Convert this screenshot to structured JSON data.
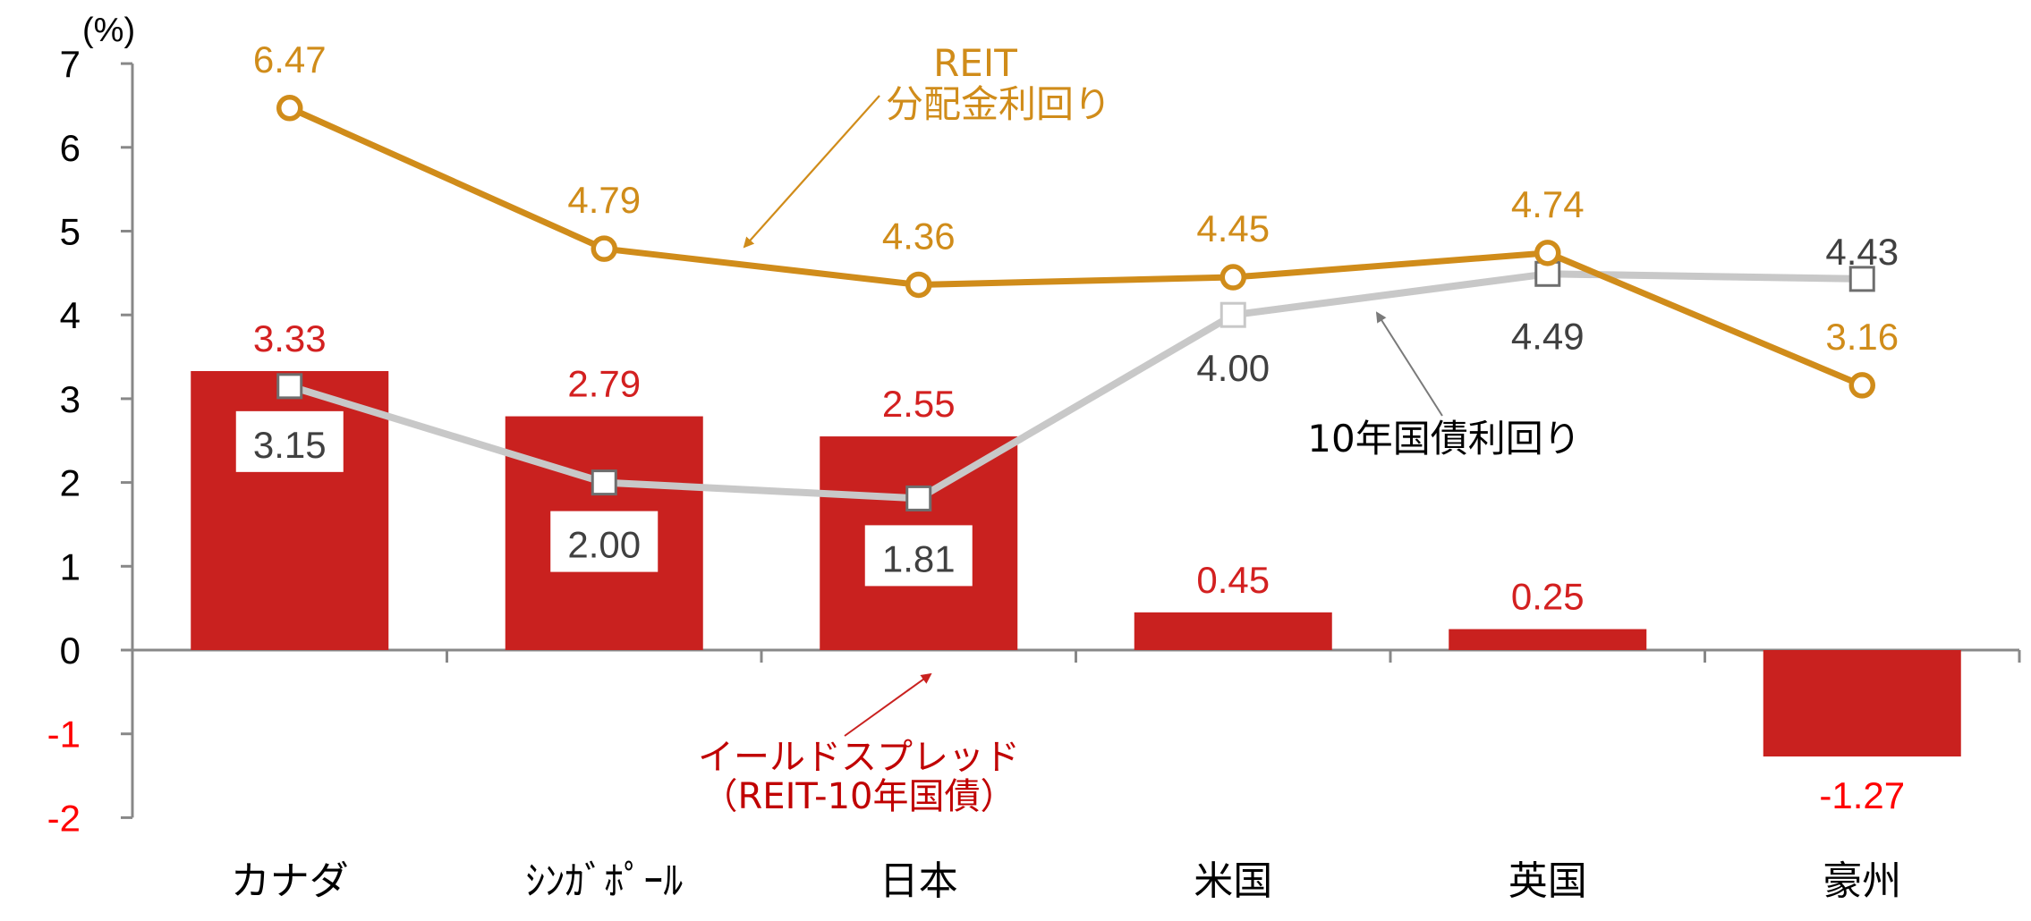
{
  "chart_data": {
    "type": "bar",
    "title": "",
    "unit_label": "(%)",
    "xlabel": "",
    "ylabel": "(%)",
    "ylim": [
      -2,
      7
    ],
    "yticks": [
      7,
      6,
      5,
      4,
      3,
      2,
      1,
      0,
      -1,
      -2
    ],
    "grid": false,
    "categories": [
      "カナダ",
      "ｼﾝｶﾞﾎﾟｰﾙ",
      "日本",
      "米国",
      "英国",
      "豪州"
    ],
    "series": [
      {
        "name": "イールドスプレッド（REIT-10年国債）",
        "type": "bar",
        "color": "#c9211f",
        "label_color": "#d32020",
        "values": [
          3.33,
          2.79,
          2.55,
          0.45,
          0.25,
          -1.27
        ],
        "labels": [
          "3.33",
          "2.79",
          "2.55",
          "0.45",
          "0.25",
          "-1.27"
        ]
      },
      {
        "name": "REIT分配金利回り",
        "type": "line",
        "color": "#d08c1a",
        "marker": "circle",
        "values": [
          6.47,
          4.79,
          4.36,
          4.45,
          4.74,
          3.16
        ],
        "labels": [
          "6.47",
          "4.79",
          "4.36",
          "4.45",
          "4.74",
          "3.16"
        ]
      },
      {
        "name": "10年国債利回り",
        "type": "line",
        "color": "#c8c8c8",
        "marker": "square",
        "label_color": "#404040",
        "values": [
          3.15,
          2.0,
          1.81,
          4.0,
          4.49,
          4.43
        ],
        "labels": [
          "3.15",
          "2.00",
          "1.81",
          "4.00",
          "4.49",
          "4.43"
        ]
      }
    ],
    "annotations": [
      {
        "text_lines": [
          "REIT",
          "分配金利回り"
        ],
        "color": "#d08c1a",
        "points_to": "REIT分配金利回り"
      },
      {
        "text_lines": [
          "10年国債利回り"
        ],
        "color": "#000000",
        "points_to": "10年国債利回り"
      },
      {
        "text_lines": [
          "イールドスプレッド",
          "（REIT-10年国債）"
        ],
        "color": "#c00000",
        "points_to": "イールドスプレッド"
      }
    ],
    "legend": "none (inline annotations)"
  },
  "annotations": {
    "reit_line1": "REIT",
    "reit_line2": "分配金利回り",
    "bond_label": "10年国債利回り",
    "spread_line1": "イールドスプレッド",
    "spread_line2": "（REIT-10年国債）"
  },
  "colors": {
    "bar": "#c9211f",
    "bar_label": "#d32020",
    "reit": "#d08c1a",
    "bond_line": "#c8c8c8",
    "bond_marker_border": "#6e6e6e",
    "bond_label": "#404040",
    "axis": "#888888",
    "negative_tick": "#ff0000",
    "spread_annotation": "#c00000"
  }
}
